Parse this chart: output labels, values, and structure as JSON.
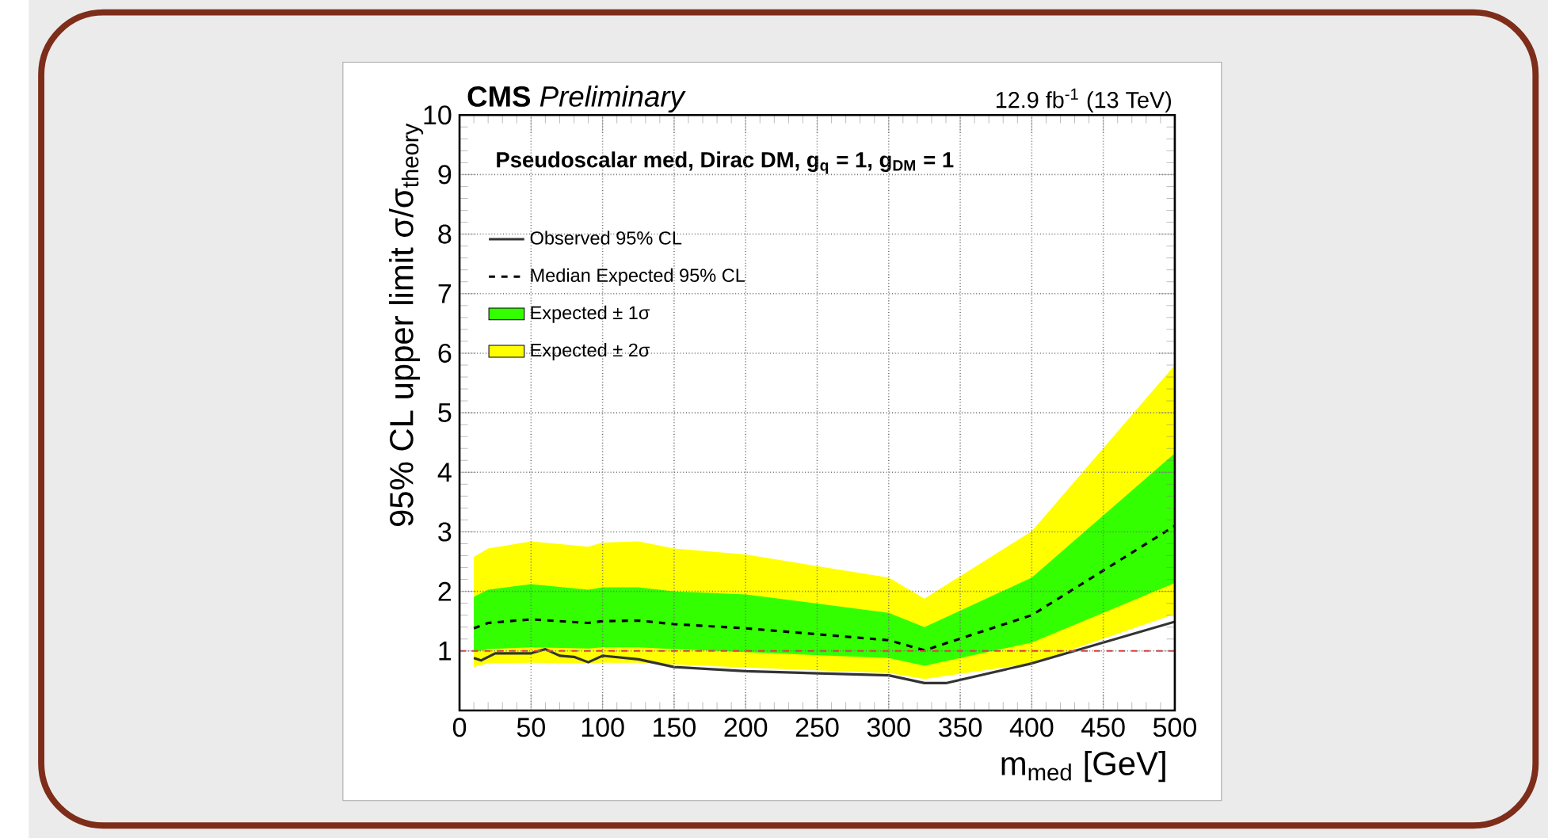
{
  "chart_data": {
    "type": "line",
    "title": "**CMS** *Preliminary*",
    "subtitle": "12.9 fb$^{-1}$ (13 TeV)",
    "xlabel": "m$_{med}$ [GeV]",
    "ylabel": "95% CL upper limit σ/σ$_{theory}$",
    "annotations": [
      "Pseudoscalar med, Dirac DM, g$_{q}$ = 1, g$_{DM}$ = 1"
    ],
    "x": [
      10,
      20,
      50,
      90,
      100,
      125,
      150,
      200,
      300,
      325,
      400,
      500
    ],
    "series": [
      {
        "name": "Observed 95% CL",
        "line_style": "solid",
        "color": "#333333",
        "x": [
          10,
          15,
          25,
          50,
          60,
          70,
          80,
          90,
          100,
          125,
          150,
          200,
          300,
          325,
          340,
          400,
          500
        ],
        "values": [
          0.88,
          0.84,
          0.96,
          0.96,
          1.03,
          0.92,
          0.9,
          0.81,
          0.92,
          0.86,
          0.73,
          0.66,
          0.59,
          0.46,
          0.46,
          0.79,
          1.49
        ]
      },
      {
        "name": "Median Expected 95% CL",
        "line_style": "dashed",
        "color": "#000000",
        "values": [
          1.38,
          1.47,
          1.53,
          1.47,
          1.5,
          1.51,
          1.45,
          1.38,
          1.18,
          1.01,
          1.6,
          3.1
        ]
      },
      {
        "name": "Expected ± 1σ",
        "type": "area",
        "color": "#33ff00",
        "values": [
          null,
          null,
          null,
          null,
          null,
          null,
          null,
          null,
          null,
          null,
          null,
          null
        ],
        "lower": [
          0.98,
          1.03,
          1.06,
          1.04,
          1.06,
          1.06,
          1.03,
          0.98,
          0.88,
          0.75,
          1.14,
          2.14
        ],
        "upper": [
          1.91,
          2.03,
          2.12,
          2.03,
          2.07,
          2.07,
          2.0,
          1.95,
          1.64,
          1.4,
          2.23,
          4.32
        ]
      },
      {
        "name": "Expected ± 2σ",
        "type": "area",
        "color": "#ffff00",
        "values": [
          null,
          null,
          null,
          null,
          null,
          null,
          null,
          null,
          null,
          null,
          null,
          null
        ],
        "lower": [
          0.73,
          0.79,
          0.8,
          0.79,
          0.8,
          0.8,
          0.77,
          0.72,
          0.63,
          0.53,
          0.79,
          1.62
        ],
        "upper": [
          2.58,
          2.72,
          2.84,
          2.75,
          2.82,
          2.84,
          2.72,
          2.62,
          2.23,
          1.88,
          3.01,
          5.8
        ]
      }
    ],
    "ref_lines": [
      {
        "axis": "y",
        "value": 1,
        "color": "#ff3030",
        "line_style": "dashed"
      }
    ],
    "xlim": [
      0,
      500
    ],
    "ylim": [
      0,
      10
    ],
    "xticks": [
      0,
      50,
      100,
      150,
      200,
      250,
      300,
      350,
      400,
      450,
      500
    ],
    "yticks": [
      1,
      2,
      3,
      4,
      5,
      6,
      7,
      8,
      9,
      10
    ],
    "grid": true,
    "legend": "top left",
    "marker": "none"
  }
}
